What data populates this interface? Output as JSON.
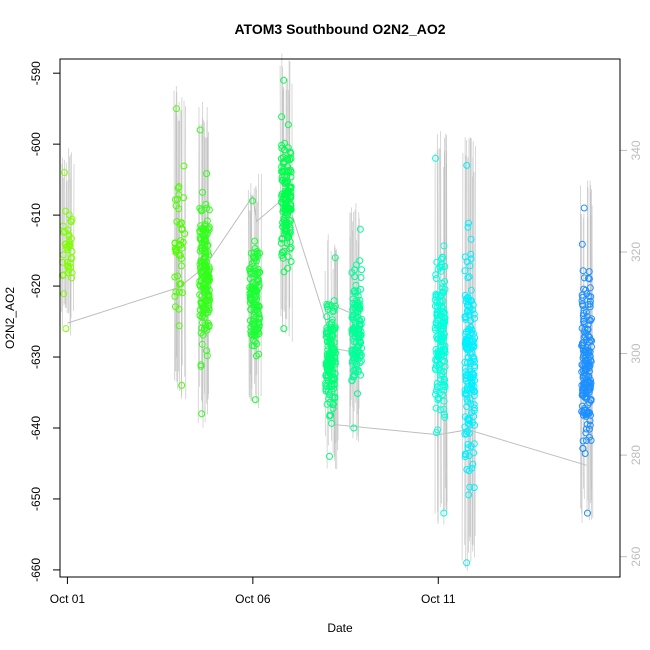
{
  "chart_data": {
    "type": "scatter",
    "title": "ATOM3 Southbound O2N2_AO2",
    "xlabel": "Date",
    "ylabel": "O2N2_AO2",
    "x_tick_labels": [
      "Oct 01",
      "Oct 06",
      "Oct 11"
    ],
    "x_tick_values": [
      1,
      6,
      11
    ],
    "xlim": [
      0.8,
      15.9
    ],
    "ylim": [
      -661,
      -588
    ],
    "y_ticks": [
      -590,
      -600,
      -610,
      -620,
      -630,
      -640,
      -650,
      -660
    ],
    "y2_ticks": [
      260,
      280,
      300,
      320,
      340
    ],
    "y2lim": [
      256,
      358
    ],
    "y2_color": "#bdbdbd",
    "grid": false,
    "legend": "none",
    "point_style": "open circles, colour graded from green to blue along the track",
    "clusters": [
      {
        "x": 1.0,
        "ymin": -626,
        "ymax": -604,
        "n": 40,
        "color": "#7fff00"
      },
      {
        "x": 4.03,
        "ymin": -634,
        "ymax": -595,
        "n": 45,
        "color": "#4cff00"
      },
      {
        "x": 4.7,
        "ymin": -638,
        "ymax": -598,
        "n": 170,
        "color": "#33ff1a"
      },
      {
        "x": 6.05,
        "ymin": -636,
        "ymax": -608,
        "n": 120,
        "color": "#1aff33"
      },
      {
        "x": 6.9,
        "ymin": -626,
        "ymax": -591,
        "n": 150,
        "color": "#00ff4c"
      },
      {
        "x": 8.1,
        "ymin": -644,
        "ymax": -616,
        "n": 150,
        "color": "#00ff7a"
      },
      {
        "x": 8.8,
        "ymin": -640,
        "ymax": -612,
        "n": 120,
        "color": "#00ff99"
      },
      {
        "x": 11.05,
        "ymin": -652,
        "ymax": -602,
        "n": 150,
        "color": "#00ffdd"
      },
      {
        "x": 11.85,
        "ymin": -659,
        "ymax": -603,
        "n": 170,
        "color": "#00f0ff"
      },
      {
        "x": 15.0,
        "ymin": -652,
        "ymax": -609,
        "n": 190,
        "color": "#1e90ff"
      }
    ],
    "aux_line_color": "#bebebe",
    "aux_line_y2": [
      [
        1.0,
        306
      ],
      [
        4.0,
        313
      ],
      [
        4.7,
        317
      ],
      [
        6.0,
        331
      ],
      [
        6.1,
        326
      ],
      [
        6.9,
        331
      ],
      [
        8.2,
        301
      ],
      [
        8.9,
        300
      ],
      [
        8.95,
        307
      ],
      [
        8.0,
        310
      ],
      [
        8.2,
        286
      ],
      [
        11.0,
        284
      ],
      [
        11.8,
        285
      ],
      [
        15.0,
        278
      ]
    ]
  }
}
